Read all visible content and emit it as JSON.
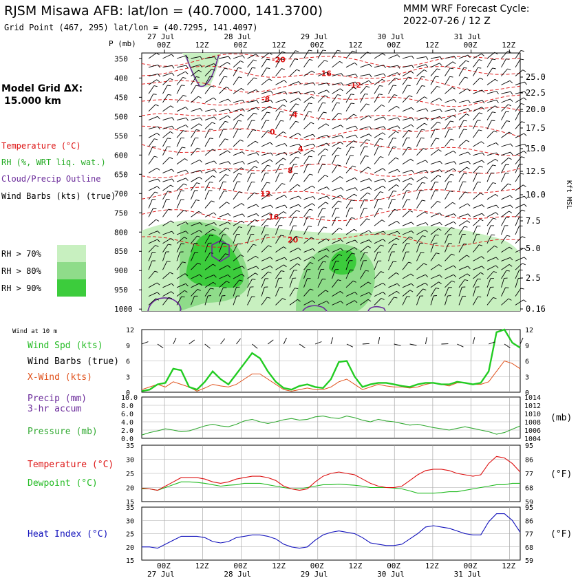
{
  "header": {
    "title": "RJSM Misawa AFB:  lat/lon = (40.7000, 141.3700)",
    "subtitle": "Grid Point (467, 295) lat/lon = (40.7295, 141.4097)",
    "cycle_label": "MMM WRF Forecast Cycle:",
    "cycle_value": "2022-07-26 / 12  Z"
  },
  "left_panel": {
    "grid_label": "Model Grid ΔX:",
    "grid_value": "15.000 km",
    "legend_temperature": "Temperature (°C)",
    "legend_rh": "RH (%, WRT liq. wat.)",
    "legend_cloud": "Cloud/Precip Outline",
    "legend_barbs": "Wind Barbs (kts) (true)",
    "rh_levels": [
      "RH > 70%",
      "RH > 80%",
      "RH > 90%"
    ],
    "rh_colors": [
      "#c8f0c0",
      "#8fdc8a",
      "#3ccc3c"
    ]
  },
  "time_axis": {
    "date_labels": [
      "27 Jul",
      "28 Jul",
      "29 Jul",
      "30 Jul",
      "31 Jul"
    ],
    "hour_labels": [
      "00Z",
      "12Z",
      "00Z",
      "12Z",
      "00Z",
      "12Z",
      "00Z",
      "12Z",
      "00Z",
      "12Z"
    ]
  },
  "chart_data": [
    {
      "type": "heatmap",
      "name": "time-height cross section",
      "p_axis_label": "P (mb)",
      "pressure_levels": [
        350,
        400,
        450,
        500,
        550,
        600,
        650,
        700,
        750,
        800,
        850,
        900,
        950,
        1000
      ],
      "height_axis_label": "Kft MSL",
      "height_labels": [
        "25.0",
        "22.5",
        "20.0",
        "17.5",
        "15.0",
        "12.5",
        "10.0",
        "7.5",
        "5.0",
        "2.5",
        "0.16"
      ],
      "temperature_contours": [
        "-20",
        "-16",
        "-12",
        "-8",
        "-4",
        "0",
        "4",
        "8",
        "12",
        "16",
        "20"
      ]
    },
    {
      "type": "line",
      "name": "wind at 10 m",
      "label": "Wind at 10 m",
      "y_ticks": [
        "12",
        "9",
        "6",
        "3",
        "0"
      ],
      "ylim": [
        0,
        12
      ],
      "series": [
        {
          "name": "Wind Spd (kts)",
          "color": "#22cc22",
          "values": [
            0.2,
            0.5,
            1.5,
            1.8,
            4.5,
            4.2,
            1.0,
            0.5,
            2.0,
            4.0,
            2.5,
            1.5,
            3.5,
            5.5,
            7.5,
            6.5,
            4.0,
            2.0,
            0.8,
            0.5,
            1.2,
            1.5,
            1.0,
            0.8,
            2.5,
            5.8,
            6.0,
            3.0,
            1.0,
            1.5,
            1.8,
            1.8,
            1.5,
            1.2,
            1.0,
            1.5,
            1.8,
            1.8,
            1.5,
            1.5,
            2.0,
            1.8,
            1.5,
            1.8,
            4.0,
            11.5,
            12.0,
            9.5,
            8.5
          ]
        },
        {
          "name": "X-Wind (kts)",
          "color": "#e0501a",
          "values": [
            0.5,
            1.0,
            1.5,
            1.0,
            2.0,
            1.5,
            1.0,
            0.2,
            0.8,
            1.5,
            1.2,
            1.0,
            1.5,
            2.5,
            3.5,
            3.5,
            2.5,
            1.5,
            0.5,
            0.2,
            0.5,
            0.8,
            0.5,
            0.5,
            1.0,
            2.0,
            2.5,
            1.5,
            0.5,
            1.0,
            1.5,
            1.2,
            1.0,
            1.0,
            0.8,
            1.0,
            1.5,
            1.8,
            1.5,
            1.2,
            1.8,
            1.8,
            1.5,
            1.5,
            2.0,
            4.0,
            6.0,
            5.5,
            4.5
          ]
        }
      ],
      "legend_barbs": "Wind Barbs (true)"
    },
    {
      "type": "line",
      "name": "precip and pressure",
      "legend_precip": "Precip (mm)",
      "legend_precip_sub": "3-hr accum",
      "legend_pressure": "Pressure (mb)",
      "precip_ticks": [
        "10.0",
        "8.0",
        "6.0",
        "4.0",
        "2.0",
        "0.0"
      ],
      "pressure_ticks": [
        "1014",
        "1012",
        "1010",
        "1008",
        "1006",
        "1004"
      ],
      "unit_label": "(mb)",
      "precip_values": [
        0,
        0,
        0,
        0,
        0,
        0,
        0,
        0,
        0,
        0,
        0,
        0,
        0,
        0,
        0,
        0,
        0,
        0,
        0,
        0,
        0,
        0,
        0,
        0,
        0,
        0,
        0,
        0,
        0,
        0,
        0,
        0,
        0,
        0,
        0,
        0,
        0,
        0,
        0,
        0,
        0,
        0,
        0,
        0,
        0,
        0,
        0,
        0,
        0
      ],
      "pressure_values": [
        1004.8,
        1005.4,
        1005.8,
        1006.3,
        1006.0,
        1005.6,
        1005.8,
        1006.4,
        1007.0,
        1007.4,
        1007.0,
        1006.8,
        1007.4,
        1008.2,
        1008.6,
        1008.0,
        1007.6,
        1008.0,
        1008.5,
        1008.8,
        1008.4,
        1008.6,
        1009.2,
        1009.4,
        1009.0,
        1008.8,
        1009.4,
        1009.0,
        1008.4,
        1008.0,
        1008.6,
        1008.2,
        1008.0,
        1007.6,
        1007.2,
        1007.4,
        1007.0,
        1006.6,
        1006.3,
        1006.0,
        1006.4,
        1006.8,
        1006.4,
        1006.0,
        1005.6,
        1005.0,
        1005.4,
        1006.2,
        1007.0
      ],
      "precip_color": "#6a2a9a",
      "pressure_color": "#33aa33"
    },
    {
      "type": "line",
      "name": "temperature and dewpoint",
      "legend_temperature": "Temperature (°C)",
      "legend_dewpoint": "Dewpoint (°C)",
      "c_ticks": [
        "35",
        "30",
        "25",
        "20",
        "15"
      ],
      "f_ticks": [
        "95",
        "86",
        "77",
        "68",
        "59"
      ],
      "unit_label": "(°F)",
      "ylim": [
        15,
        35
      ],
      "temperature_values": [
        19.8,
        19.5,
        19.0,
        20.5,
        22.0,
        23.5,
        23.5,
        23.5,
        23.0,
        22.0,
        21.5,
        22.0,
        23.0,
        23.5,
        24.0,
        24.0,
        23.5,
        22.5,
        20.5,
        19.5,
        19.0,
        19.5,
        22.0,
        24.0,
        25.0,
        25.5,
        25.0,
        24.5,
        23.0,
        21.5,
        20.5,
        20.0,
        20.0,
        20.5,
        22.5,
        24.5,
        26.0,
        26.5,
        26.5,
        26.0,
        25.0,
        24.5,
        24.0,
        24.5,
        28.5,
        31.0,
        30.5,
        28.5,
        25.5
      ],
      "dewpoint_values": [
        19.5,
        19.5,
        19.0,
        20.0,
        21.0,
        22.0,
        22.0,
        21.8,
        21.5,
        21.0,
        20.5,
        20.8,
        21.0,
        21.5,
        21.5,
        21.5,
        21.0,
        20.5,
        20.0,
        19.5,
        19.5,
        20.0,
        20.5,
        21.0,
        21.0,
        21.2,
        21.0,
        20.8,
        20.5,
        20.0,
        20.0,
        20.0,
        19.8,
        19.5,
        18.8,
        18.0,
        18.0,
        18.0,
        18.2,
        18.5,
        18.5,
        19.0,
        19.5,
        20.0,
        20.5,
        21.0,
        21.0,
        21.5,
        21.5
      ],
      "temperature_color": "#dd1111",
      "dewpoint_color": "#22bb22"
    },
    {
      "type": "line",
      "name": "heat index",
      "legend": "Heat Index (°C)",
      "c_ticks": [
        "35",
        "30",
        "25",
        "20",
        "15"
      ],
      "f_ticks": [
        "95",
        "86",
        "77",
        "68",
        "59"
      ],
      "unit_label": "(°F)",
      "ylim": [
        15,
        35
      ],
      "values": [
        20.0,
        20.0,
        19.5,
        21.0,
        22.5,
        24.0,
        24.0,
        24.0,
        23.5,
        22.0,
        21.5,
        22.0,
        23.5,
        24.0,
        24.5,
        24.5,
        24.0,
        23.0,
        21.0,
        20.0,
        19.5,
        20.0,
        22.5,
        24.5,
        25.5,
        26.0,
        25.5,
        25.0,
        23.5,
        21.5,
        21.0,
        20.5,
        20.5,
        21.0,
        23.0,
        25.0,
        27.5,
        28.0,
        27.5,
        27.0,
        26.0,
        25.0,
        24.5,
        24.5,
        29.5,
        32.5,
        32.5,
        30.0,
        25.5
      ],
      "color": "#1010bb"
    }
  ]
}
